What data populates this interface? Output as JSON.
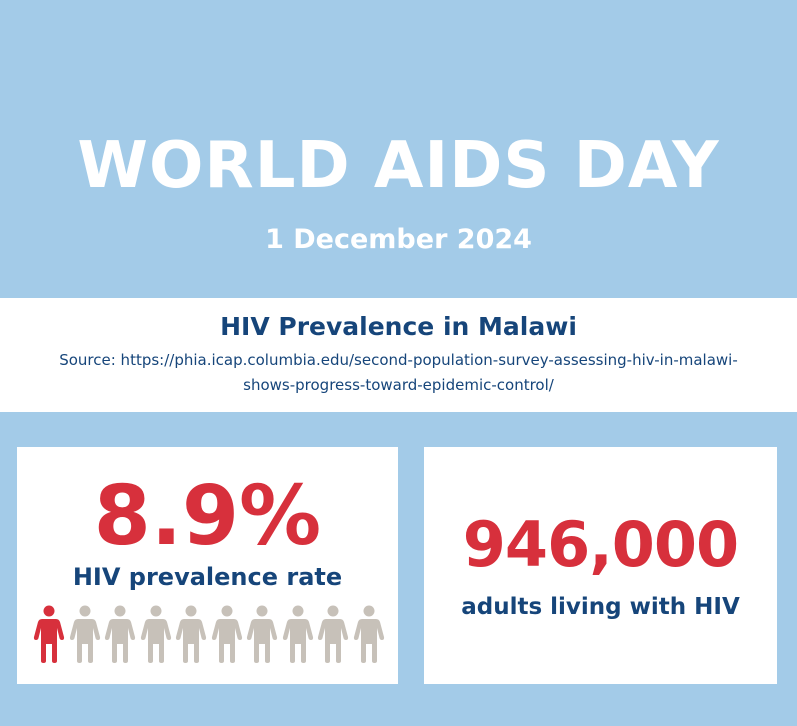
{
  "header": {
    "title": "WORLD AIDS DAY",
    "date": "1 December 2024"
  },
  "source_band": {
    "title": "HIV Prevalence in Malawi",
    "source": "Source: https://phia.icap.columbia.edu/second-population-survey-assessing-hiv-in-malawi-shows-progress-toward-epidemic-control/"
  },
  "prevalence_card": {
    "value": "8.9%",
    "label": "HIV prevalence rate",
    "people_highlighted": 1,
    "people_total": 10,
    "highlight_color": "#d7303c",
    "base_color": "#c7c1b9"
  },
  "adults_card": {
    "value": "946,000",
    "label": "adults living with HIV"
  },
  "colors": {
    "background": "#a3cbe8",
    "accent_red": "#d7303c",
    "navy": "#16457a"
  },
  "icons": {
    "person": "person-icon"
  }
}
